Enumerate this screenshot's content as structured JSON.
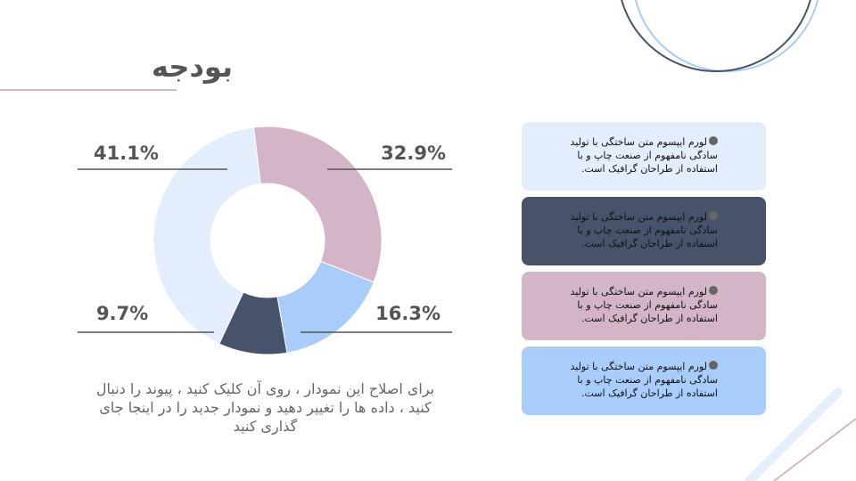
{
  "title": "بودجه",
  "chart_data": {
    "type": "donut",
    "categories": [
      null,
      null,
      null,
      null
    ],
    "values": [
      32.9,
      16.3,
      9.7,
      41.1
    ],
    "value_labels": [
      "32.9%",
      "16.3%",
      "9.7%",
      "41.1%"
    ],
    "colors": [
      "#d4b5c8",
      "#a9cdfa",
      "#47536b",
      "#e3edfc"
    ]
  },
  "caption": "برای اصلاح این نمودار ، روی آن کلیک کنید ، پیوند را دنبال کنید ، داده ها را تغییر دهید و نمودار جدید را در اینجا جای گذاری کنید",
  "boxes": [
    {
      "text": "لورم ایپسوم متن ساختگی با تولید سادگی نامفهوم از صنعت چاپ و با استفاده از طراحان گرافیک است.",
      "color": "#e3edfc"
    },
    {
      "text": "لورم ایپسوم متن ساختگی با تولید سادگی نامفهوم از صنعت چاپ و با استفاده از طراحان گرافیک است.",
      "color": "#47536b"
    },
    {
      "text": "لورم ایپسوم متن ساختگی با تولید سادگی نامفهوم از صنعت چاپ و با استفاده از طراحان گرافیک است.",
      "color": "#d4b5c8"
    },
    {
      "text": "لورم ایپسوم متن ساختگی با تولید سادگی نامفهوم از صنعت چاپ و با استفاده از طراحان گرافیک است.",
      "color": "#a9cdfa"
    }
  ]
}
